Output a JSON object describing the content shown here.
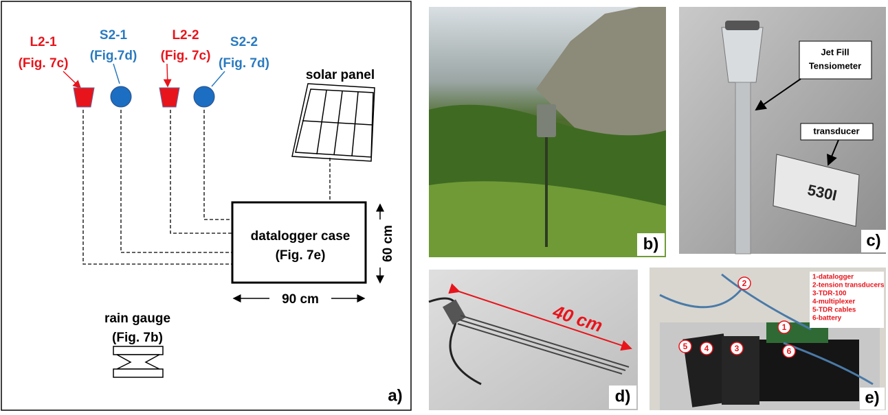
{
  "panel_a": {
    "label": "a)",
    "sensors": [
      {
        "name": "L2-1",
        "ref": "(Fig. 7c)"
      },
      {
        "name": "S2-1",
        "ref": "(Fig.7d)"
      },
      {
        "name": "L2-2",
        "ref": "(Fig. 7c)"
      },
      {
        "name": "S2-2",
        "ref": "(Fig. 7d)"
      }
    ],
    "solar_panel": "solar panel",
    "datalogger": {
      "name": "datalogger case",
      "ref": "(Fig. 7e)"
    },
    "width": "90 cm",
    "height": "60 cm",
    "rain_gauge": {
      "name": "rain gauge",
      "ref": "(Fig. 7b)"
    }
  },
  "panel_b": {
    "label": "b)"
  },
  "panel_c": {
    "label": "c)",
    "callout": [
      "Jet Fill",
      "Tensiometer"
    ],
    "transducer": "transducer",
    "model": "530I"
  },
  "panel_d": {
    "label": "d)",
    "length": "40 cm"
  },
  "panel_e": {
    "label": "e)",
    "legend": [
      "1-datalogger",
      "2-tension transducers",
      "3-TDR-100",
      "4-multiplexer",
      "5-TDR cables",
      "6-battery"
    ],
    "markers": [
      "1",
      "2",
      "3",
      "4",
      "5",
      "6"
    ]
  }
}
